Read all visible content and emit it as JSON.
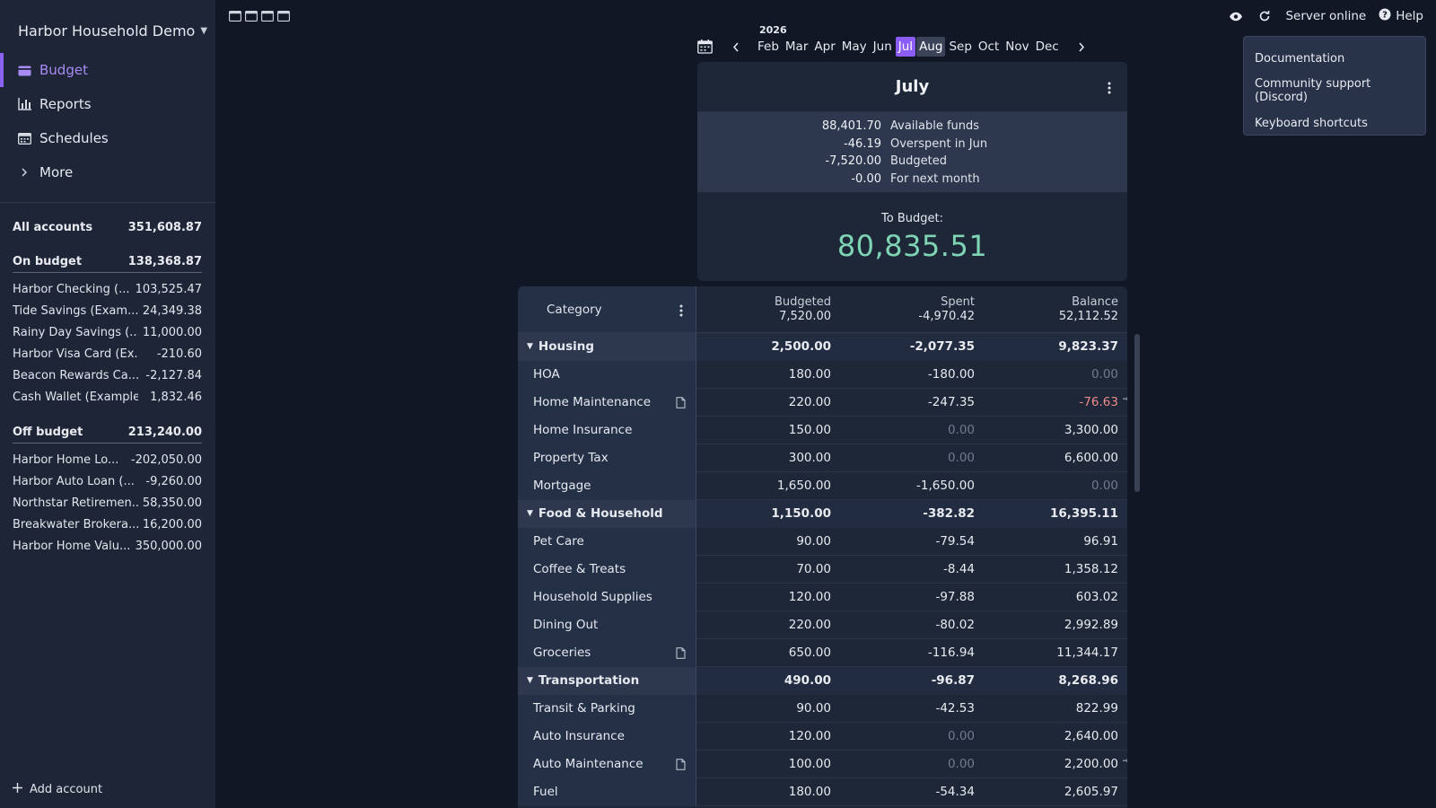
{
  "sidebar": {
    "budget_name": "Harbor Household Demo",
    "nav": [
      {
        "label": "Budget",
        "icon": "wallet-icon",
        "active": true
      },
      {
        "label": "Reports",
        "icon": "bar-chart-icon"
      },
      {
        "label": "Schedules",
        "icon": "calendar-icon"
      },
      {
        "label": "More",
        "icon": "chevron-right-icon"
      }
    ],
    "all_accounts": {
      "label": "All accounts",
      "value": "351,608.87"
    },
    "on_budget": {
      "label": "On budget",
      "value": "138,368.87"
    },
    "on_budget_accounts": [
      {
        "name": "Harbor Checking (...",
        "value": "103,525.47"
      },
      {
        "name": "Tide Savings (Exam...",
        "value": "24,349.38"
      },
      {
        "name": "Rainy Day Savings (...",
        "value": "11,000.00"
      },
      {
        "name": "Harbor Visa Card (Ex...",
        "value": "-210.60"
      },
      {
        "name": "Beacon Rewards Ca...",
        "value": "-2,127.84"
      },
      {
        "name": "Cash Wallet (Example)",
        "value": "1,832.46"
      }
    ],
    "off_budget": {
      "label": "Off budget",
      "value": "213,240.00"
    },
    "off_budget_accounts": [
      {
        "name": "Harbor Home Lo...",
        "value": "-202,050.00"
      },
      {
        "name": "Harbor Auto Loan (...",
        "value": "-9,260.00"
      },
      {
        "name": "Northstar Retiremen...",
        "value": "58,350.00"
      },
      {
        "name": "Breakwater Brokera...",
        "value": "16,200.00"
      },
      {
        "name": "Harbor Home Valu...",
        "value": "350,000.00"
      }
    ],
    "add_account": "Add account"
  },
  "topbar": {
    "server_status": "Server online",
    "help": "Help"
  },
  "help_menu": [
    "Documentation",
    "Community support (Discord)",
    "Keyboard shortcuts"
  ],
  "month_picker": {
    "year": "2026",
    "months": [
      "Feb",
      "Mar",
      "Apr",
      "May",
      "Jun",
      "Jul",
      "Aug",
      "Sep",
      "Oct",
      "Nov",
      "Dec"
    ],
    "selected": [
      "Jul",
      "Aug"
    ]
  },
  "summary": {
    "title": "July",
    "lines": [
      {
        "value": "88,401.70",
        "label": "Available funds"
      },
      {
        "value": "-46.19",
        "label": "Overspent in Jun"
      },
      {
        "value": "-7,520.00",
        "label": "Budgeted"
      },
      {
        "value": "-0.00",
        "label": "For next month"
      }
    ],
    "to_budget_label": "To Budget:",
    "to_budget_value": "80,835.51"
  },
  "table": {
    "header": {
      "category": "Category",
      "budgeted_label": "Budgeted",
      "budgeted_total": "7,520.00",
      "spent_label": "Spent",
      "spent_total": "-4,970.42",
      "balance_label": "Balance",
      "balance_total": "52,112.52"
    },
    "rows": [
      {
        "type": "group",
        "name": "Housing",
        "budgeted": "2,500.00",
        "spent": "-2,077.35",
        "balance": "9,823.37"
      },
      {
        "name": "HOA",
        "budgeted": "180.00",
        "spent": "-180.00",
        "balance": "0.00",
        "balance_dim": true
      },
      {
        "name": "Home Maintenance",
        "note": true,
        "budgeted": "220.00",
        "spent": "-247.35",
        "balance": "-76.63",
        "balance_neg": true,
        "carry": true
      },
      {
        "name": "Home Insurance",
        "budgeted": "150.00",
        "spent": "0.00",
        "spent_dim": true,
        "balance": "3,300.00"
      },
      {
        "name": "Property Tax",
        "budgeted": "300.00",
        "spent": "0.00",
        "spent_dim": true,
        "balance": "6,600.00"
      },
      {
        "name": "Mortgage",
        "budgeted": "1,650.00",
        "spent": "-1,650.00",
        "balance": "0.00",
        "balance_dim": true
      },
      {
        "type": "group",
        "name": "Food & Household",
        "budgeted": "1,150.00",
        "spent": "-382.82",
        "balance": "16,395.11"
      },
      {
        "name": "Pet Care",
        "budgeted": "90.00",
        "spent": "-79.54",
        "balance": "96.91"
      },
      {
        "name": "Coffee & Treats",
        "budgeted": "70.00",
        "spent": "-8.44",
        "balance": "1,358.12"
      },
      {
        "name": "Household Supplies",
        "budgeted": "120.00",
        "spent": "-97.88",
        "balance": "603.02"
      },
      {
        "name": "Dining Out",
        "budgeted": "220.00",
        "spent": "-80.02",
        "balance": "2,992.89"
      },
      {
        "name": "Groceries",
        "note": true,
        "budgeted": "650.00",
        "spent": "-116.94",
        "balance": "11,344.17"
      },
      {
        "type": "group",
        "name": "Transportation",
        "budgeted": "490.00",
        "spent": "-96.87",
        "balance": "8,268.96"
      },
      {
        "name": "Transit & Parking",
        "budgeted": "90.00",
        "spent": "-42.53",
        "balance": "822.99"
      },
      {
        "name": "Auto Insurance",
        "budgeted": "120.00",
        "spent": "0.00",
        "spent_dim": true,
        "balance": "2,640.00"
      },
      {
        "name": "Auto Maintenance",
        "note": true,
        "budgeted": "100.00",
        "spent": "0.00",
        "spent_dim": true,
        "balance": "2,200.00",
        "carry": true
      },
      {
        "name": "Fuel",
        "budgeted": "180.00",
        "spent": "-54.34",
        "balance": "2,605.97"
      }
    ]
  },
  "colors": {
    "accent": "#8b5cf6",
    "positive": "#7fd4b4",
    "negative": "#f08a8a",
    "sidebar": "#1d2537",
    "background": "#121725"
  }
}
